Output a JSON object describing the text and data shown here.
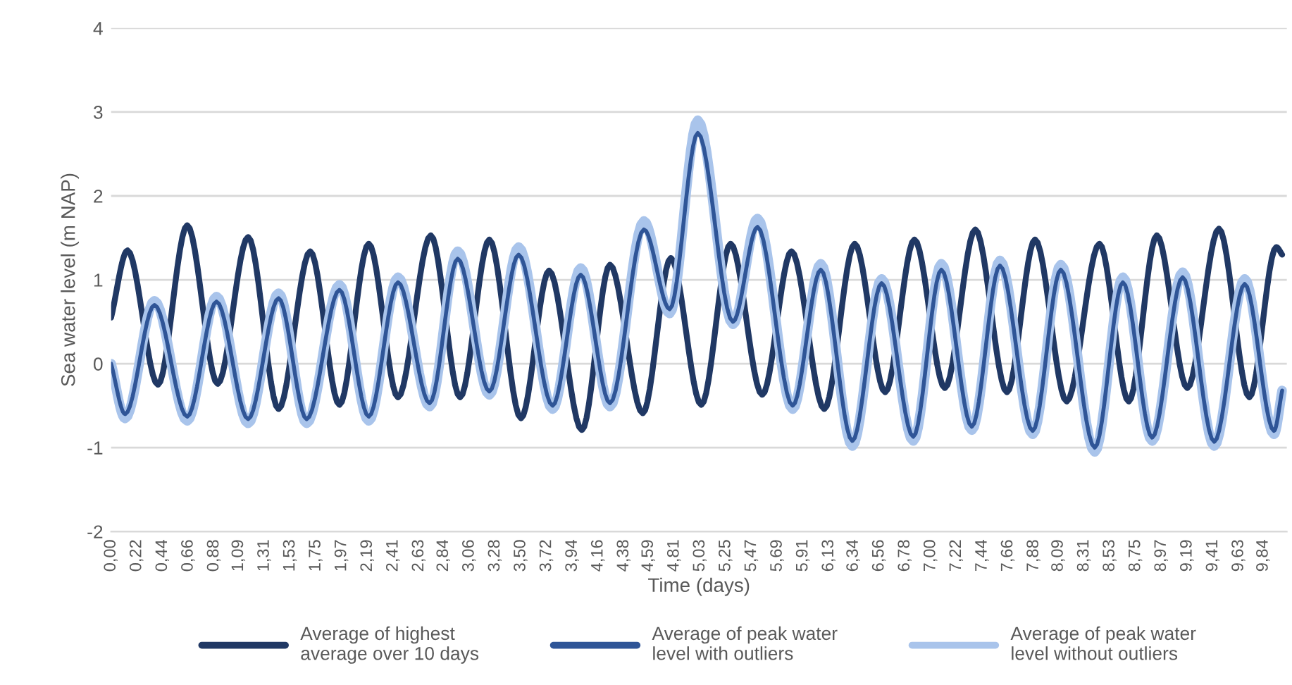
{
  "chart_data": {
    "type": "line",
    "xlabel": "Time (days)",
    "ylabel": "Sea water level (m NAP)",
    "xlim": [
      0,
      10.04
    ],
    "ylim": [
      -2,
      4
    ],
    "yticks": [
      -2,
      -1,
      0,
      1,
      2,
      3,
      4
    ],
    "xticks": [
      {
        "value": 0.0,
        "label": "0,00"
      },
      {
        "value": 0.22,
        "label": "0,22"
      },
      {
        "value": 0.44,
        "label": "0,44"
      },
      {
        "value": 0.66,
        "label": "0,66"
      },
      {
        "value": 0.88,
        "label": "0,88"
      },
      {
        "value": 1.09,
        "label": "1,09"
      },
      {
        "value": 1.31,
        "label": "1,31"
      },
      {
        "value": 1.53,
        "label": "1,53"
      },
      {
        "value": 1.75,
        "label": "1,75"
      },
      {
        "value": 1.97,
        "label": "1,97"
      },
      {
        "value": 2.19,
        "label": "2,19"
      },
      {
        "value": 2.41,
        "label": "2,41"
      },
      {
        "value": 2.63,
        "label": "2,63"
      },
      {
        "value": 2.84,
        "label": "2,84"
      },
      {
        "value": 3.06,
        "label": "3,06"
      },
      {
        "value": 3.28,
        "label": "3,28"
      },
      {
        "value": 3.5,
        "label": "3,50"
      },
      {
        "value": 3.72,
        "label": "3,72"
      },
      {
        "value": 3.94,
        "label": "3,94"
      },
      {
        "value": 4.16,
        "label": "4,16"
      },
      {
        "value": 4.38,
        "label": "4,38"
      },
      {
        "value": 4.59,
        "label": "4,59"
      },
      {
        "value": 4.81,
        "label": "4,81"
      },
      {
        "value": 5.03,
        "label": "5,03"
      },
      {
        "value": 5.25,
        "label": "5,25"
      },
      {
        "value": 5.47,
        "label": "5,47"
      },
      {
        "value": 5.69,
        "label": "5,69"
      },
      {
        "value": 5.91,
        "label": "5,91"
      },
      {
        "value": 6.13,
        "label": "6,13"
      },
      {
        "value": 6.34,
        "label": "6,34"
      },
      {
        "value": 6.56,
        "label": "6,56"
      },
      {
        "value": 6.78,
        "label": "6,78"
      },
      {
        "value": 7.0,
        "label": "7,00"
      },
      {
        "value": 7.22,
        "label": "7,22"
      },
      {
        "value": 7.44,
        "label": "7,44"
      },
      {
        "value": 7.66,
        "label": "7,66"
      },
      {
        "value": 7.88,
        "label": "7,88"
      },
      {
        "value": 8.09,
        "label": "8,09"
      },
      {
        "value": 8.31,
        "label": "8,31"
      },
      {
        "value": 8.53,
        "label": "8,53"
      },
      {
        "value": 8.75,
        "label": "8,75"
      },
      {
        "value": 8.97,
        "label": "8,97"
      },
      {
        "value": 9.19,
        "label": "9,19"
      },
      {
        "value": 9.41,
        "label": "9,41"
      },
      {
        "value": 9.63,
        "label": "9,63"
      },
      {
        "value": 9.84,
        "label": "9,84"
      }
    ],
    "grid": "y",
    "legend": "bottom",
    "line_style": "solid",
    "marker": "none",
    "series": [
      {
        "name": "Average of highest average over 10 days",
        "color": "#203864",
        "x": [
          0.0,
          0.14,
          0.4,
          0.65,
          0.91,
          1.17,
          1.43,
          1.7,
          1.95,
          2.2,
          2.45,
          2.73,
          2.98,
          3.23,
          3.5,
          3.74,
          4.02,
          4.26,
          4.54,
          4.78,
          5.04,
          5.29,
          5.56,
          5.81,
          6.09,
          6.35,
          6.61,
          6.86,
          7.12,
          7.38,
          7.65,
          7.89,
          8.16,
          8.44,
          8.69,
          8.93,
          9.19,
          9.46,
          9.72,
          9.95,
          10.0
        ],
        "values": [
          0.55,
          1.35,
          -0.25,
          1.65,
          -0.24,
          1.51,
          -0.54,
          1.34,
          -0.49,
          1.43,
          -0.4,
          1.53,
          -0.4,
          1.48,
          -0.65,
          1.11,
          -0.79,
          1.18,
          -0.59,
          1.26,
          -0.49,
          1.43,
          -0.37,
          1.34,
          -0.54,
          1.43,
          -0.34,
          1.48,
          -0.29,
          1.6,
          -0.34,
          1.48,
          -0.45,
          1.43,
          -0.45,
          1.53,
          -0.29,
          1.61,
          -0.4,
          1.39,
          1.3
        ]
      },
      {
        "name": "Average of peak water level with outliers",
        "color": "#2f5597",
        "x": [
          0.0,
          0.12,
          0.37,
          0.65,
          0.9,
          1.17,
          1.43,
          1.67,
          1.95,
          2.2,
          2.45,
          2.72,
          2.96,
          3.23,
          3.48,
          3.77,
          4.01,
          4.26,
          4.55,
          4.77,
          5.01,
          5.31,
          5.52,
          5.82,
          6.06,
          6.33,
          6.58,
          6.85,
          7.09,
          7.35,
          7.59,
          7.87,
          8.11,
          8.4,
          8.64,
          8.89,
          9.15,
          9.42,
          9.68,
          9.93,
          10.0
        ],
        "values": [
          0.0,
          -0.6,
          0.7,
          -0.63,
          0.74,
          -0.66,
          0.78,
          -0.66,
          0.88,
          -0.63,
          0.97,
          -0.47,
          1.25,
          -0.33,
          1.3,
          -0.5,
          1.06,
          -0.47,
          1.6,
          0.65,
          2.75,
          0.5,
          1.63,
          -0.5,
          1.12,
          -0.92,
          0.96,
          -0.87,
          1.12,
          -0.75,
          1.17,
          -0.8,
          1.12,
          -1.0,
          0.97,
          -0.88,
          1.03,
          -0.93,
          0.95,
          -0.8,
          -0.32
        ]
      },
      {
        "name": "Average of peak water level without outliers",
        "color": "#a9c4eb",
        "x": [
          0.0,
          0.12,
          0.37,
          0.65,
          0.9,
          1.17,
          1.43,
          1.67,
          1.95,
          2.2,
          2.45,
          2.72,
          2.96,
          3.23,
          3.48,
          3.77,
          4.01,
          4.26,
          4.55,
          4.77,
          5.01,
          5.31,
          5.52,
          5.82,
          6.06,
          6.33,
          6.58,
          6.85,
          7.09,
          7.35,
          7.59,
          7.87,
          8.11,
          8.4,
          8.64,
          8.89,
          9.15,
          9.42,
          9.68,
          9.93,
          10.0
        ],
        "values": [
          0.0,
          -0.65,
          0.75,
          -0.68,
          0.8,
          -0.71,
          0.84,
          -0.71,
          0.94,
          -0.68,
          1.03,
          -0.51,
          1.34,
          -0.37,
          1.39,
          -0.54,
          1.14,
          -0.51,
          1.7,
          0.6,
          2.9,
          0.47,
          1.73,
          -0.54,
          1.19,
          -0.98,
          1.01,
          -0.92,
          1.19,
          -0.79,
          1.23,
          -0.84,
          1.18,
          -1.05,
          1.03,
          -0.92,
          1.09,
          -0.98,
          1.01,
          -0.84,
          -0.32
        ]
      }
    ]
  }
}
